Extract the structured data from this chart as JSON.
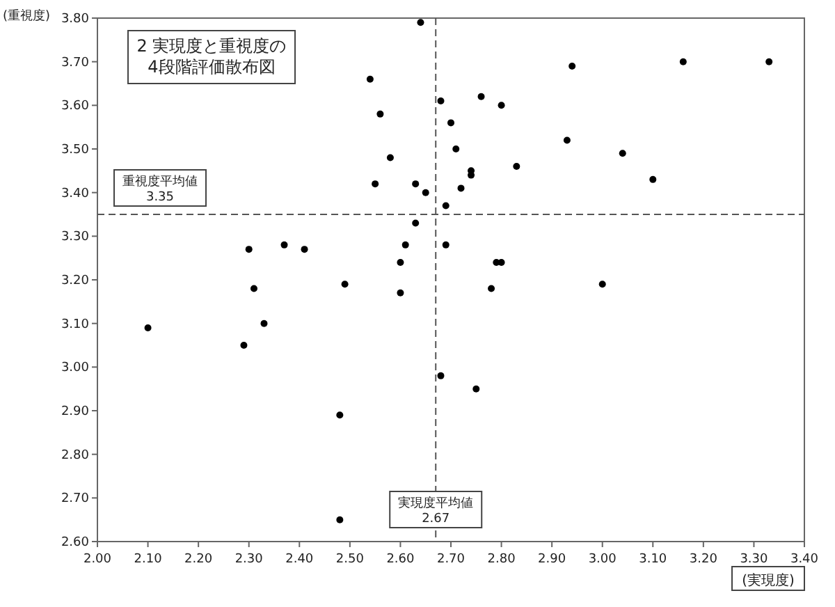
{
  "chart_data": {
    "type": "scatter",
    "title": "2 実現度と重視度の\n4段階評価散布図",
    "xlabel": "(実現度)",
    "ylabel": "(重視度)",
    "x": [
      2.54,
      2.56,
      2.58,
      2.55,
      2.63,
      2.63,
      2.3,
      2.37,
      2.41,
      2.61,
      2.6,
      2.31,
      2.49,
      2.6,
      2.64,
      2.94,
      3.16,
      3.33,
      2.68,
      2.76,
      2.8,
      2.7,
      2.71,
      2.93,
      3.04,
      2.83,
      2.74,
      2.74,
      2.72,
      3.1,
      2.65,
      2.69,
      2.69,
      2.79,
      2.8,
      2.78,
      3.0,
      2.1,
      2.33,
      2.29,
      2.48,
      2.48,
      2.68,
      2.75
    ],
    "values": [
      3.66,
      3.58,
      3.48,
      3.42,
      3.42,
      3.33,
      3.27,
      3.28,
      3.27,
      3.28,
      3.24,
      3.18,
      3.19,
      3.17,
      3.79,
      3.69,
      3.7,
      3.7,
      3.61,
      3.62,
      3.6,
      3.56,
      3.5,
      3.52,
      3.49,
      3.46,
      3.45,
      3.44,
      3.41,
      3.43,
      3.4,
      3.37,
      3.28,
      3.24,
      3.24,
      3.18,
      3.19,
      3.09,
      3.1,
      3.05,
      2.89,
      2.65,
      2.98,
      2.95
    ],
    "color": "#000000",
    "marker": "circle",
    "grid": false,
    "xlim": [
      2.0,
      3.4
    ],
    "ylim": [
      2.6,
      3.8
    ],
    "xticks": [
      {
        "value": 2.0,
        "label": "2.00"
      },
      {
        "value": 2.1,
        "label": "2.10"
      },
      {
        "value": 2.2,
        "label": "2.20"
      },
      {
        "value": 2.3,
        "label": "2.30"
      },
      {
        "value": 2.4,
        "label": "2.40"
      },
      {
        "value": 2.5,
        "label": "2.50"
      },
      {
        "value": 2.6,
        "label": "2.60"
      },
      {
        "value": 2.7,
        "label": "2.70"
      },
      {
        "value": 2.8,
        "label": "2.80"
      },
      {
        "value": 2.9,
        "label": "2.90"
      },
      {
        "value": 3.0,
        "label": "3.00"
      },
      {
        "value": 3.1,
        "label": "3.10"
      },
      {
        "value": 3.2,
        "label": "3.20"
      },
      {
        "value": 3.3,
        "label": "3.30"
      },
      {
        "value": 3.4,
        "label": "3.40"
      }
    ],
    "yticks": [
      {
        "value": 2.6,
        "label": "2.60"
      },
      {
        "value": 2.7,
        "label": "2.70"
      },
      {
        "value": 2.8,
        "label": "2.80"
      },
      {
        "value": 2.9,
        "label": "2.90"
      },
      {
        "value": 3.0,
        "label": "3.00"
      },
      {
        "value": 3.1,
        "label": "3.10"
      },
      {
        "value": 3.2,
        "label": "3.20"
      },
      {
        "value": 3.3,
        "label": "3.30"
      },
      {
        "value": 3.4,
        "label": "3.40"
      },
      {
        "value": 3.5,
        "label": "3.50"
      },
      {
        "value": 3.6,
        "label": "3.60"
      },
      {
        "value": 3.7,
        "label": "3.70"
      },
      {
        "value": 3.8,
        "label": "3.80"
      }
    ],
    "ref_lines": [
      {
        "axis": "y",
        "value": 3.35,
        "label": "重視度平均値\n3.35",
        "line_style": "dashed"
      },
      {
        "axis": "x",
        "value": 2.67,
        "label": "実現度平均値\n2.67",
        "line_style": "dashed"
      }
    ]
  }
}
